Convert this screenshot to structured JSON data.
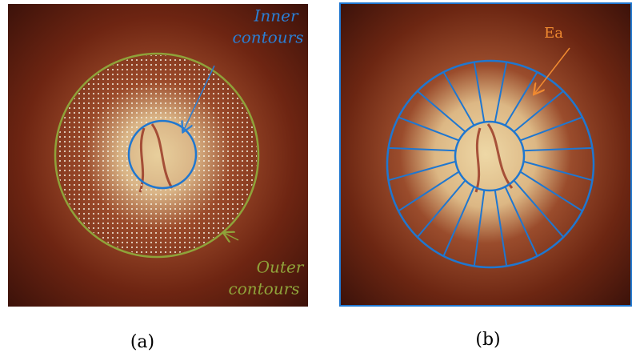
{
  "panels": [
    {
      "caption": "(a)",
      "annotations": [
        {
          "lines": [
            "Inner",
            "contours"
          ]
        },
        {
          "lines": [
            "Outer",
            "contours"
          ]
        }
      ]
    },
    {
      "caption": "(b)",
      "annotations": [
        {
          "lines": [
            "Ea"
          ]
        }
      ]
    }
  ]
}
